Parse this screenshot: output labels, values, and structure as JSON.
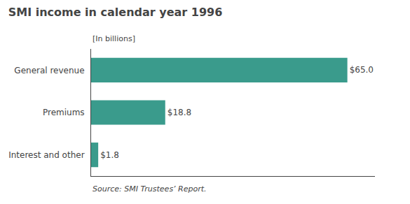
{
  "chart_data": {
    "type": "bar",
    "orientation": "horizontal",
    "title": "SMI income in calendar year 1996",
    "subtitle": "[In billions]",
    "categories": [
      "Interest and other",
      "Premiums",
      "General revenue"
    ],
    "values": [
      1.8,
      18.8,
      65.0
    ],
    "value_labels": [
      "$1.8",
      "$18.8",
      "$65.0"
    ],
    "data_labels": true,
    "color": "#3a9b8c",
    "xlim": [
      0,
      72
    ],
    "tick_labels": "y",
    "grid": false,
    "annotations": [
      "Source: SMI Trustees’ Report."
    ]
  }
}
